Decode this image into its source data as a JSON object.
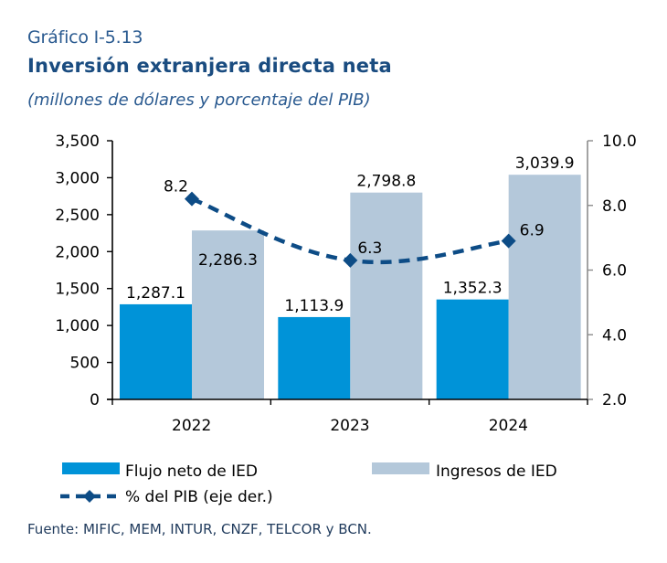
{
  "header": {
    "figure_number": "Gráfico I-5.13",
    "title": "Inversión extranjera directa neta",
    "subtitle": "(millones de dólares y porcentaje del PIB)"
  },
  "source": "Fuente: MIFIC, MEM, INTUR, CNZF, TELCOR y BCN.",
  "chart_data": {
    "type": "bar",
    "title": "Inversión extranjera directa neta",
    "subtitle": "(millones de dólares y porcentaje del PIB)",
    "categories": [
      "2022",
      "2023",
      "2024"
    ],
    "series": [
      {
        "name": "Flujo neto de IED",
        "type": "bar",
        "axis": "left",
        "color": "#0093d8",
        "values": [
          1287.1,
          1113.9,
          1352.3
        ],
        "labels": [
          "1,287.1",
          "1,113.9",
          "1,352.3"
        ]
      },
      {
        "name": "Ingresos de IED",
        "type": "bar",
        "axis": "left",
        "color": "#b4c8da",
        "values": [
          2286.3,
          2798.8,
          3039.9
        ],
        "labels": [
          "2,286.3",
          "2,798.8",
          "3,039.9"
        ]
      },
      {
        "name": "% del PIB (eje der.)",
        "type": "line",
        "style": "dashed-smooth-diamond",
        "axis": "right",
        "color": "#0d4c86",
        "values": [
          8.2,
          6.3,
          6.9
        ],
        "labels": [
          "8.2",
          "6.3",
          "6.9"
        ]
      }
    ],
    "y_left": {
      "label": "",
      "range": [
        0,
        3500
      ],
      "ticks": [
        0,
        500,
        1000,
        1500,
        2000,
        2500,
        3000,
        3500
      ],
      "tick_labels": [
        "0",
        "500",
        "1,000",
        "1,500",
        "2,000",
        "2,500",
        "3,000",
        "3,500"
      ]
    },
    "y_right": {
      "label": "",
      "range": [
        2.0,
        10.0
      ],
      "ticks": [
        2,
        4,
        6,
        8,
        10
      ],
      "tick_labels": [
        "2.0",
        "4.0",
        "6.0",
        "8.0",
        "10.0"
      ],
      "axis_color": "#8c8c8c"
    },
    "xlabel": "",
    "grid": false,
    "legend": {
      "placement": "bottom",
      "entries": [
        "Flujo neto de IED",
        "Ingresos de IED",
        "% del PIB (eje der.)"
      ]
    }
  }
}
